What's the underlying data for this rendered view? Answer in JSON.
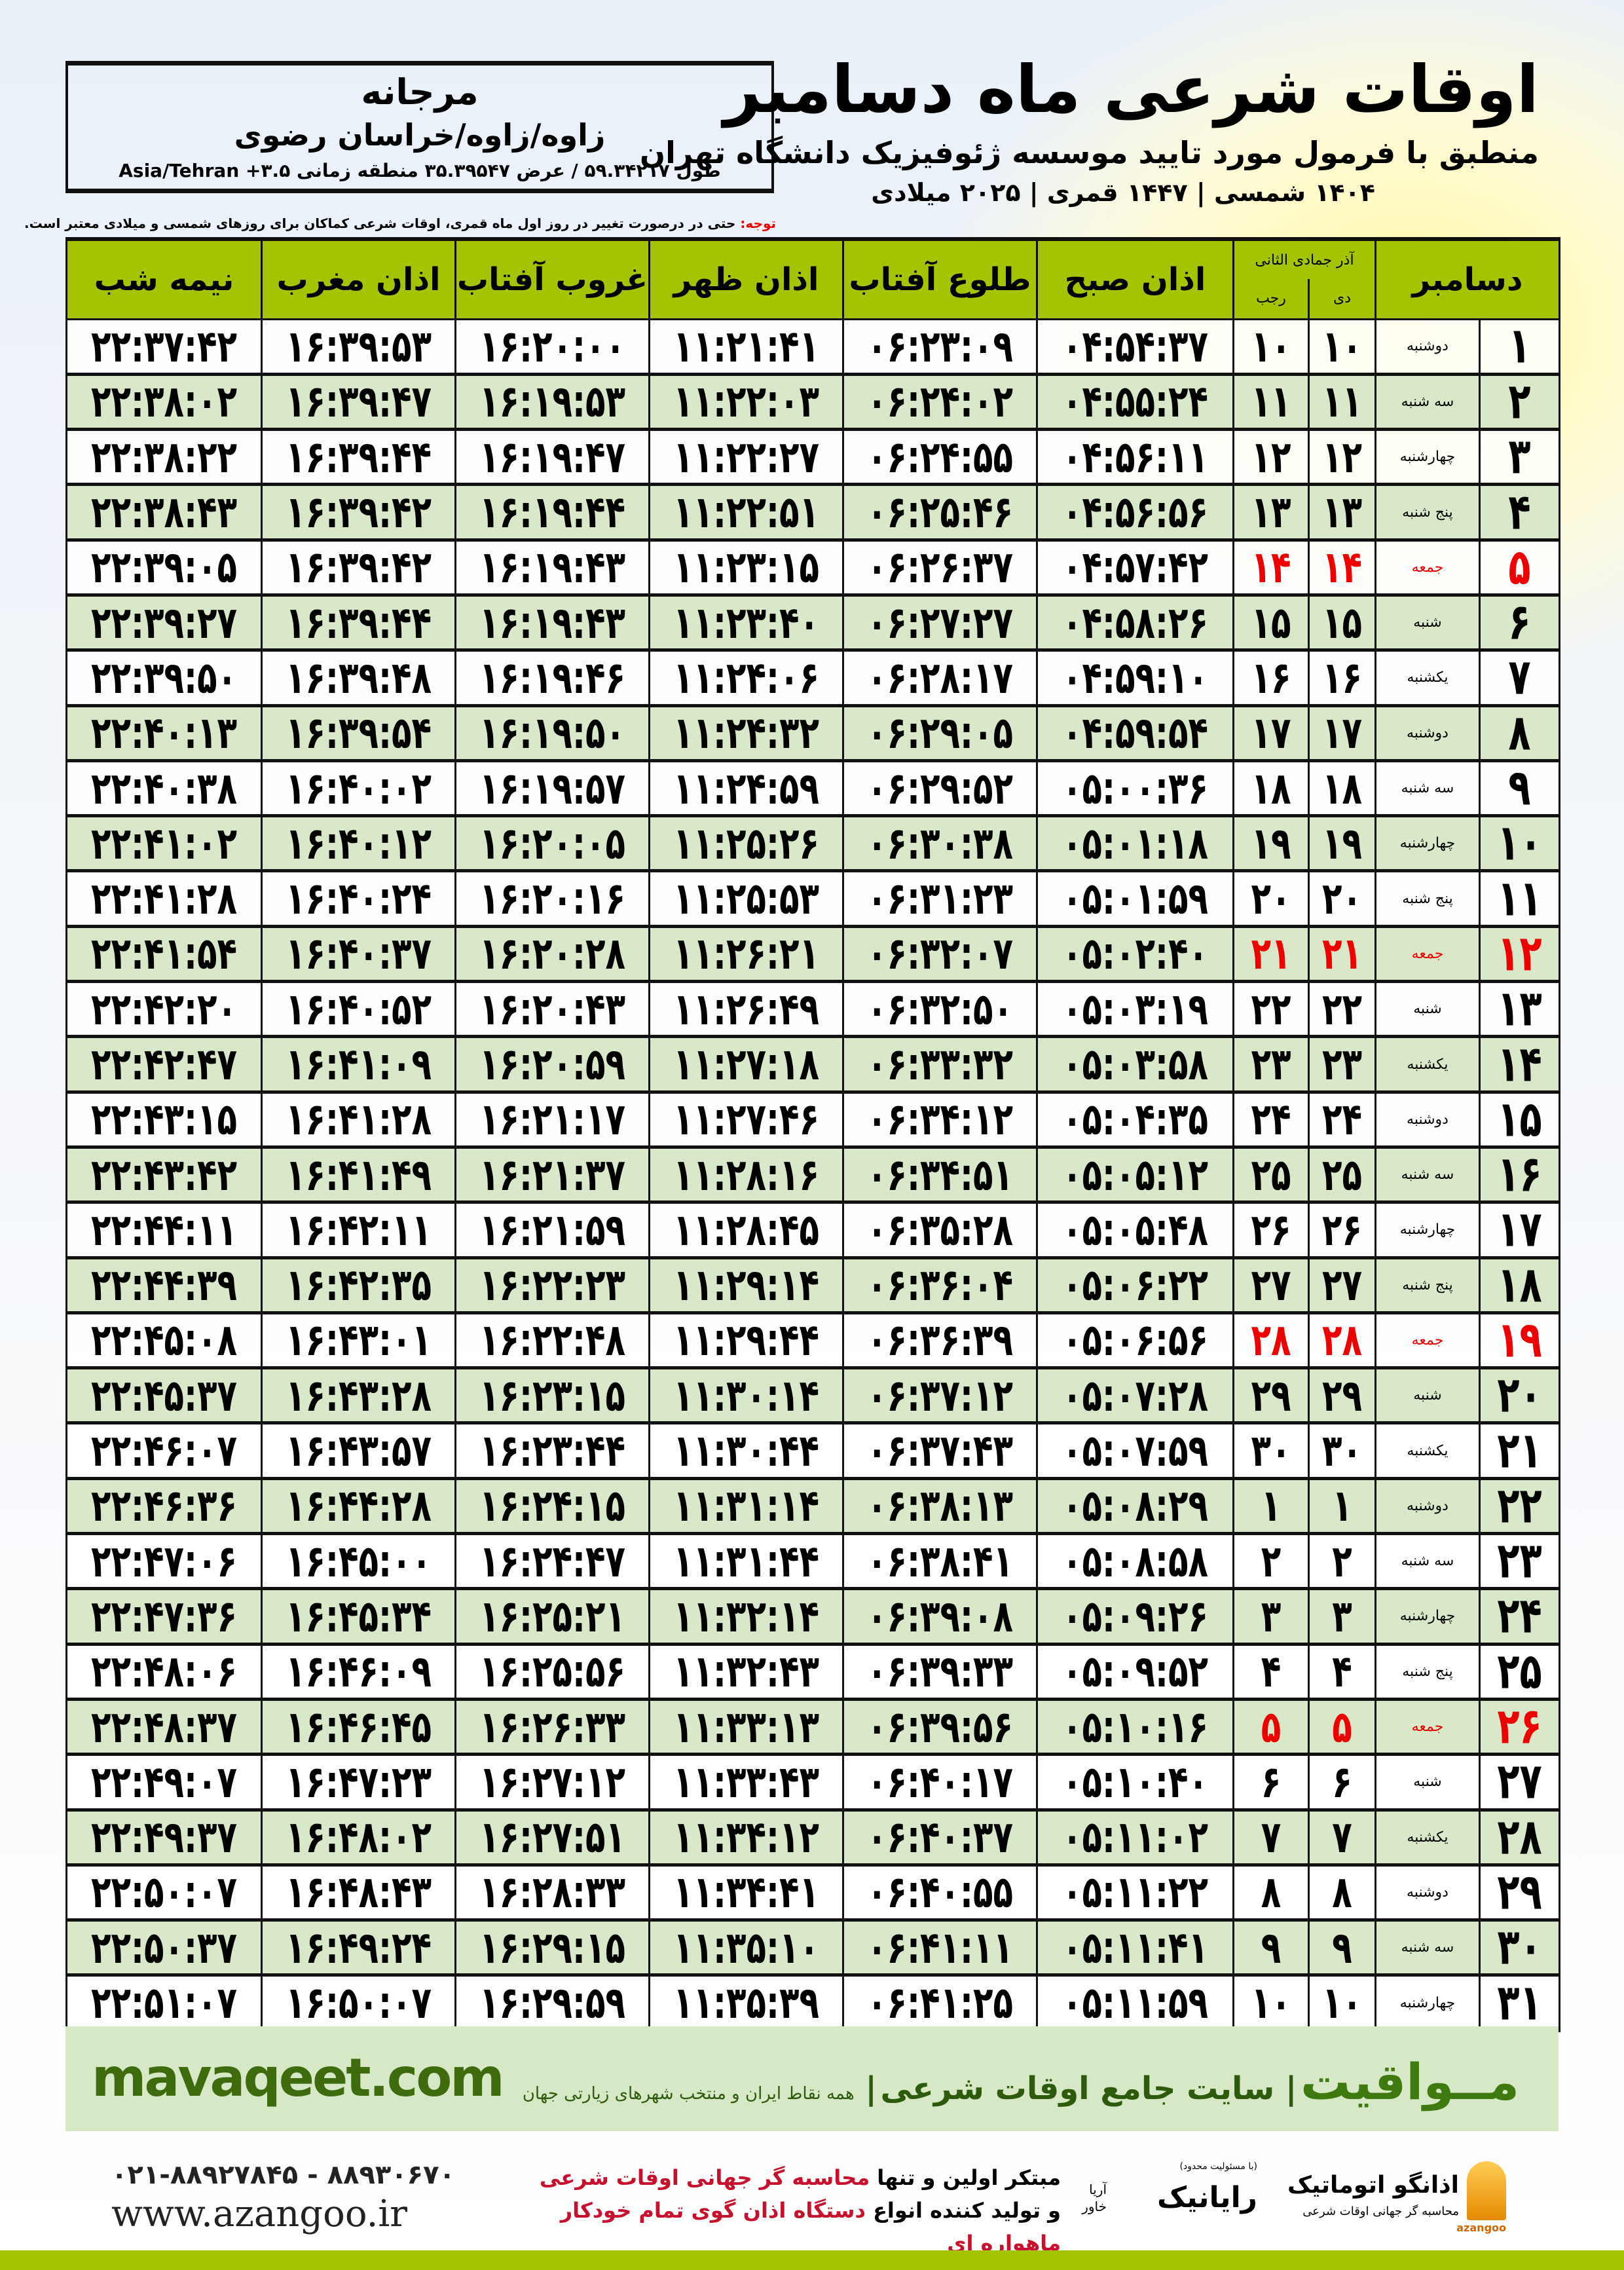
{
  "location": {
    "name": "مرجانه",
    "path": "زاوه/زاوه/خراسان رضوی",
    "coords": "طول ۵۹.۳۴۲۱۷ / عرض ۳۵.۳۹۵۴۷ منطقه زمانی ۳.۵+ Asia/Tehran"
  },
  "title": "اوقات شرعی ماه دسامبر",
  "subtitle": "منطبق با فرمول مورد تایید موسسه ژئوفیزیک دانشگاه تهران",
  "dateline": "۱۴۰۴ شمسی | ۱۴۴۷ قمری | ۲۰۲۵ میلادی",
  "note": {
    "label": "توجه:",
    "text": " حتی در درصورت تغییر در روز اول ماه قمری، اوقات شرعی کماکان برای روزهای شمسی و میلادی معتبر است."
  },
  "colors": {
    "header": "#a6c300",
    "alt_row": "#d9e8c8",
    "holiday": "#ee0000",
    "brand": "#3e6b0e"
  },
  "table": {
    "headers": {
      "month": "دسامبر",
      "months_top": "آذر جمادی الثانی",
      "dey": "دی",
      "rajab": "رجب",
      "sobh": "اذان صبح",
      "toloo": "طلوع آفتاب",
      "zohr": "اذان ظهر",
      "ghorub": "غروب آفتاب",
      "maghreb": "اذان مغرب",
      "nimeshab": "نیمه شب"
    },
    "rows": [
      [
        "۱",
        "دوشنبه",
        "۱۰",
        "۱۰",
        "۰۴:۵۴:۳۷",
        "۰۶:۲۳:۰۹",
        "۱۱:۲۱:۴۱",
        "۱۶:۲۰:۰۰",
        "۱۶:۳۹:۵۳",
        "۲۲:۳۷:۴۲"
      ],
      [
        "۲",
        "سه شنبه",
        "۱۱",
        "۱۱",
        "۰۴:۵۵:۲۴",
        "۰۶:۲۴:۰۲",
        "۱۱:۲۲:۰۳",
        "۱۶:۱۹:۵۳",
        "۱۶:۳۹:۴۷",
        "۲۲:۳۸:۰۲"
      ],
      [
        "۳",
        "چهارشنبه",
        "۱۲",
        "۱۲",
        "۰۴:۵۶:۱۱",
        "۰۶:۲۴:۵۵",
        "۱۱:۲۲:۲۷",
        "۱۶:۱۹:۴۷",
        "۱۶:۳۹:۴۴",
        "۲۲:۳۸:۲۲"
      ],
      [
        "۴",
        "پنج شنبه",
        "۱۳",
        "۱۳",
        "۰۴:۵۶:۵۶",
        "۰۶:۲۵:۴۶",
        "۱۱:۲۲:۵۱",
        "۱۶:۱۹:۴۴",
        "۱۶:۳۹:۴۲",
        "۲۲:۳۸:۴۳"
      ],
      [
        "۵",
        "جمعه",
        "۱۴",
        "۱۴",
        "۰۴:۵۷:۴۲",
        "۰۶:۲۶:۳۷",
        "۱۱:۲۳:۱۵",
        "۱۶:۱۹:۴۳",
        "۱۶:۳۹:۴۲",
        "۲۲:۳۹:۰۵"
      ],
      [
        "۶",
        "شنبه",
        "۱۵",
        "۱۵",
        "۰۴:۵۸:۲۶",
        "۰۶:۲۷:۲۷",
        "۱۱:۲۳:۴۰",
        "۱۶:۱۹:۴۳",
        "۱۶:۳۹:۴۴",
        "۲۲:۳۹:۲۷"
      ],
      [
        "۷",
        "یکشنبه",
        "۱۶",
        "۱۶",
        "۰۴:۵۹:۱۰",
        "۰۶:۲۸:۱۷",
        "۱۱:۲۴:۰۶",
        "۱۶:۱۹:۴۶",
        "۱۶:۳۹:۴۸",
        "۲۲:۳۹:۵۰"
      ],
      [
        "۸",
        "دوشنبه",
        "۱۷",
        "۱۷",
        "۰۴:۵۹:۵۴",
        "۰۶:۲۹:۰۵",
        "۱۱:۲۴:۳۲",
        "۱۶:۱۹:۵۰",
        "۱۶:۳۹:۵۴",
        "۲۲:۴۰:۱۳"
      ],
      [
        "۹",
        "سه شنبه",
        "۱۸",
        "۱۸",
        "۰۵:۰۰:۳۶",
        "۰۶:۲۹:۵۲",
        "۱۱:۲۴:۵۹",
        "۱۶:۱۹:۵۷",
        "۱۶:۴۰:۰۲",
        "۲۲:۴۰:۳۸"
      ],
      [
        "۱۰",
        "چهارشنبه",
        "۱۹",
        "۱۹",
        "۰۵:۰۱:۱۸",
        "۰۶:۳۰:۳۸",
        "۱۱:۲۵:۲۶",
        "۱۶:۲۰:۰۵",
        "۱۶:۴۰:۱۲",
        "۲۲:۴۱:۰۲"
      ],
      [
        "۱۱",
        "پنج شنبه",
        "۲۰",
        "۲۰",
        "۰۵:۰۱:۵۹",
        "۰۶:۳۱:۲۳",
        "۱۱:۲۵:۵۳",
        "۱۶:۲۰:۱۶",
        "۱۶:۴۰:۲۴",
        "۲۲:۴۱:۲۸"
      ],
      [
        "۱۲",
        "جمعه",
        "۲۱",
        "۲۱",
        "۰۵:۰۲:۴۰",
        "۰۶:۳۲:۰۷",
        "۱۱:۲۶:۲۱",
        "۱۶:۲۰:۲۸",
        "۱۶:۴۰:۳۷",
        "۲۲:۴۱:۵۴"
      ],
      [
        "۱۳",
        "شنبه",
        "۲۲",
        "۲۲",
        "۰۵:۰۳:۱۹",
        "۰۶:۳۲:۵۰",
        "۱۱:۲۶:۴۹",
        "۱۶:۲۰:۴۳",
        "۱۶:۴۰:۵۲",
        "۲۲:۴۲:۲۰"
      ],
      [
        "۱۴",
        "یکشنبه",
        "۲۳",
        "۲۳",
        "۰۵:۰۳:۵۸",
        "۰۶:۳۳:۳۲",
        "۱۱:۲۷:۱۸",
        "۱۶:۲۰:۵۹",
        "۱۶:۴۱:۰۹",
        "۲۲:۴۲:۴۷"
      ],
      [
        "۱۵",
        "دوشنبه",
        "۲۴",
        "۲۴",
        "۰۵:۰۴:۳۵",
        "۰۶:۳۴:۱۲",
        "۱۱:۲۷:۴۶",
        "۱۶:۲۱:۱۷",
        "۱۶:۴۱:۲۸",
        "۲۲:۴۳:۱۵"
      ],
      [
        "۱۶",
        "سه شنبه",
        "۲۵",
        "۲۵",
        "۰۵:۰۵:۱۲",
        "۰۶:۳۴:۵۱",
        "۱۱:۲۸:۱۶",
        "۱۶:۲۱:۳۷",
        "۱۶:۴۱:۴۹",
        "۲۲:۴۳:۴۲"
      ],
      [
        "۱۷",
        "چهارشنبه",
        "۲۶",
        "۲۶",
        "۰۵:۰۵:۴۸",
        "۰۶:۳۵:۲۸",
        "۱۱:۲۸:۴۵",
        "۱۶:۲۱:۵۹",
        "۱۶:۴۲:۱۱",
        "۲۲:۴۴:۱۱"
      ],
      [
        "۱۸",
        "پنج شنبه",
        "۲۷",
        "۲۷",
        "۰۵:۰۶:۲۲",
        "۰۶:۳۶:۰۴",
        "۱۱:۲۹:۱۴",
        "۱۶:۲۲:۲۳",
        "۱۶:۴۲:۳۵",
        "۲۲:۴۴:۳۹"
      ],
      [
        "۱۹",
        "جمعه",
        "۲۸",
        "۲۸",
        "۰۵:۰۶:۵۶",
        "۰۶:۳۶:۳۹",
        "۱۱:۲۹:۴۴",
        "۱۶:۲۲:۴۸",
        "۱۶:۴۳:۰۱",
        "۲۲:۴۵:۰۸"
      ],
      [
        "۲۰",
        "شنبه",
        "۲۹",
        "۲۹",
        "۰۵:۰۷:۲۸",
        "۰۶:۳۷:۱۲",
        "۱۱:۳۰:۱۴",
        "۱۶:۲۳:۱۵",
        "۱۶:۴۳:۲۸",
        "۲۲:۴۵:۳۷"
      ],
      [
        "۲۱",
        "یکشنبه",
        "۳۰",
        "۳۰",
        "۰۵:۰۷:۵۹",
        "۰۶:۳۷:۴۳",
        "۱۱:۳۰:۴۴",
        "۱۶:۲۳:۴۴",
        "۱۶:۴۳:۵۷",
        "۲۲:۴۶:۰۷"
      ],
      [
        "۲۲",
        "دوشنبه",
        "۱",
        "۱",
        "۰۵:۰۸:۲۹",
        "۰۶:۳۸:۱۳",
        "۱۱:۳۱:۱۴",
        "۱۶:۲۴:۱۵",
        "۱۶:۴۴:۲۸",
        "۲۲:۴۶:۳۶"
      ],
      [
        "۲۳",
        "سه شنبه",
        "۲",
        "۲",
        "۰۵:۰۸:۵۸",
        "۰۶:۳۸:۴۱",
        "۱۱:۳۱:۴۴",
        "۱۶:۲۴:۴۷",
        "۱۶:۴۵:۰۰",
        "۲۲:۴۷:۰۶"
      ],
      [
        "۲۴",
        "چهارشنبه",
        "۳",
        "۳",
        "۰۵:۰۹:۲۶",
        "۰۶:۳۹:۰۸",
        "۱۱:۳۲:۱۴",
        "۱۶:۲۵:۲۱",
        "۱۶:۴۵:۳۴",
        "۲۲:۴۷:۳۶"
      ],
      [
        "۲۵",
        "پنج شنبه",
        "۴",
        "۴",
        "۰۵:۰۹:۵۲",
        "۰۶:۳۹:۳۳",
        "۱۱:۳۲:۴۳",
        "۱۶:۲۵:۵۶",
        "۱۶:۴۶:۰۹",
        "۲۲:۴۸:۰۶"
      ],
      [
        "۲۶",
        "جمعه",
        "۵",
        "۵",
        "۰۵:۱۰:۱۶",
        "۰۶:۳۹:۵۶",
        "۱۱:۳۳:۱۳",
        "۱۶:۲۶:۳۳",
        "۱۶:۴۶:۴۵",
        "۲۲:۴۸:۳۷"
      ],
      [
        "۲۷",
        "شنبه",
        "۶",
        "۶",
        "۰۵:۱۰:۴۰",
        "۰۶:۴۰:۱۷",
        "۱۱:۳۳:۴۳",
        "۱۶:۲۷:۱۲",
        "۱۶:۴۷:۲۳",
        "۲۲:۴۹:۰۷"
      ],
      [
        "۲۸",
        "یکشنبه",
        "۷",
        "۷",
        "۰۵:۱۱:۰۲",
        "۰۶:۴۰:۳۷",
        "۱۱:۳۴:۱۲",
        "۱۶:۲۷:۵۱",
        "۱۶:۴۸:۰۲",
        "۲۲:۴۹:۳۷"
      ],
      [
        "۲۹",
        "دوشنبه",
        "۸",
        "۸",
        "۰۵:۱۱:۲۲",
        "۰۶:۴۰:۵۵",
        "۱۱:۳۴:۴۱",
        "۱۶:۲۸:۳۳",
        "۱۶:۴۸:۴۳",
        "۲۲:۵۰:۰۷"
      ],
      [
        "۳۰",
        "سه شنبه",
        "۹",
        "۹",
        "۰۵:۱۱:۴۱",
        "۰۶:۴۱:۱۱",
        "۱۱:۳۵:۱۰",
        "۱۶:۲۹:۱۵",
        "۱۶:۴۹:۲۴",
        "۲۲:۵۰:۳۷"
      ],
      [
        "۳۱",
        "چهارشنبه",
        "۱۰",
        "۱۰",
        "۰۵:۱۱:۵۹",
        "۰۶:۴۱:۲۵",
        "۱۱:۳۵:۳۹",
        "۱۶:۲۹:۵۹",
        "۱۶:۵۰:۰۷",
        "۲۲:۵۱:۰۷"
      ]
    ]
  },
  "footer": {
    "brand_fa": "مــواقیت",
    "tagline": "سایت جامع اوقات شرعی",
    "tagline_sub": "همه نقاط ایران و منتخب شهرهای زیارتی جهان",
    "brand_en": "mavaqeet.com",
    "phone": "۰۲۱-۸۸۹۲۷۸۴۵ - ۸۸۹۳۰۶۷۰",
    "website": "www.azangoo.ir",
    "promo1_a": "مبتکر اولین و تنها ",
    "promo1_b": "محاسبه گر جهانی اوقات شرعی",
    "promo2_a": "و تولید کننده انواع ",
    "promo2_b": "دستگاه اذان گوی تمام خودکار ماهواره ای",
    "logo_azangoo": "اذانگو اتوماتیک",
    "logo_azangoo_sub": "محاسبه گر جهانی اوقات شرعی",
    "logo_azangoo_en": "azangoo",
    "logo_rayanik": "رایانیک",
    "logo_rayanik_sub": "(با مسئولیت محدود)",
    "logo_rayanik_side": "آریا خاور"
  }
}
